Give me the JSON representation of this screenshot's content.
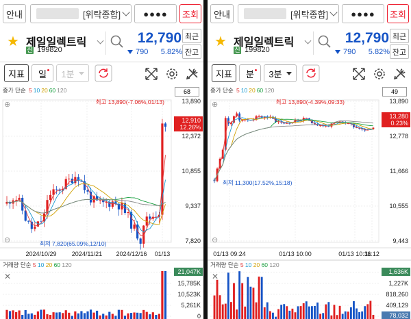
{
  "panels": [
    {
      "id": "left",
      "header": {
        "info": "안내",
        "account_type": "[위탁종합]",
        "password_mask": "●●●●",
        "query": "조회"
      },
      "stock": {
        "name": "제일일렉트릭",
        "market_badge": "신",
        "code": "199820",
        "price": "12,790",
        "change": "790",
        "rate": "5.82%",
        "side_top": "최근",
        "side_bottom": "잔고"
      },
      "toolbar": {
        "indicator": "지표",
        "period": "일",
        "interval": "1분"
      },
      "price_chart": {
        "legend": {
          "prefix": "종가 단순",
          "ma": [
            "5",
            "10",
            "20",
            "60",
            "120"
          ]
        },
        "page": "68",
        "high_label": "최고 13,890(-7.06%,01/13)",
        "low_label": "최저 7,820(65.09%,12/10)",
        "y_ticks": [
          "13,890",
          "12,372",
          "10,855",
          "9,337",
          "7,820"
        ],
        "x_ticks": [
          "2024/10/29",
          "2024/11/21",
          "2024/12/16",
          "01/13"
        ],
        "current_price": "12,910",
        "current_rate": "12.26%"
      },
      "volume_chart": {
        "legend": {
          "prefix": "거래량 단순",
          "ma": [
            "5",
            "10",
            "20",
            "60",
            "120"
          ]
        },
        "y_ticks": [
          "21,047K",
          "15,785K",
          "10,523K",
          "5,261K",
          "0"
        ]
      }
    },
    {
      "id": "right",
      "header": {
        "info": "안내",
        "account_type": "[위탁종합]",
        "password_mask": "●●●●",
        "query": "조회"
      },
      "stock": {
        "name": "제일일렉트릭",
        "market_badge": "신",
        "code": "199820",
        "price": "12,790",
        "change": "790",
        "rate": "5.82%",
        "side_top": "최근",
        "side_bottom": "잔고"
      },
      "toolbar": {
        "indicator": "지표",
        "period": "분",
        "interval": "3분"
      },
      "price_chart": {
        "legend": {
          "prefix": "종가 단순",
          "ma": [
            "5",
            "10",
            "20",
            "60",
            "120"
          ]
        },
        "page": "49",
        "high_label": "최고 13,890(-4.39%,09:33)",
        "low_label": "최저 11,300(17.52%,15:18)",
        "y_ticks": [
          "13,890",
          "12,778",
          "11,666",
          "10,555",
          "9,443"
        ],
        "x_ticks": [
          "01/13 09:24",
          "01/13 10:00",
          "01/13 10:36",
          "11:12"
        ],
        "current_price": "13,280",
        "current_rate": "0.23%"
      },
      "volume_chart": {
        "legend": {
          "prefix": "거래량 단순",
          "ma": [
            "5",
            "10",
            "20",
            "60",
            "120"
          ]
        },
        "y_ticks": [
          "1,636K",
          "1,227K",
          "818,260",
          "409,129",
          "78,032"
        ]
      }
    }
  ],
  "colors": {
    "up": "#e02020",
    "down": "#1654c6",
    "ma5": "#e04040",
    "ma10": "#1a9ad0",
    "ma20": "#d0a000",
    "ma60": "#1aa040",
    "ma120": "#888888",
    "badge": "#4a9a55",
    "star": "#f5b800"
  }
}
